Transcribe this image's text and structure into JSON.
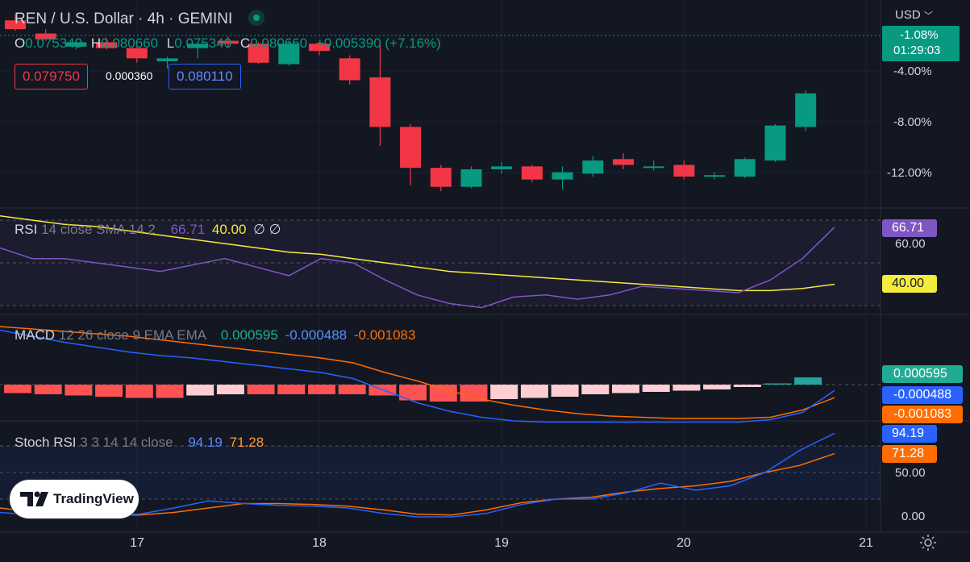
{
  "header": {
    "symbol": "REN / U.S. Dollar · 4h · GEMINI",
    "o_label": "O",
    "o_value": "0.075340",
    "h_label": "H",
    "h_value": "0.080660",
    "l_label": "L",
    "l_value": "0.075340",
    "c_label": "C",
    "c_value": "0.080660",
    "change": "+0.005390 (+7.16%)",
    "sell_price": "0.079750",
    "spread": "0.000360",
    "buy_price": "0.080110",
    "currency": "USD"
  },
  "price_axis": {
    "labels": [
      "-4.00%",
      "-8.00%",
      "-12.00%"
    ],
    "last_tag_pct": "-1.08%",
    "last_tag_time": "01:29:03"
  },
  "rsi": {
    "title": "RSI",
    "params": "14 close SMA 14 2",
    "value": "66.71",
    "sma_value": "40.00",
    "extra": "∅ ∅",
    "axis_label": "60.00",
    "color_rsi": "#7e57c2",
    "color_sma": "#f5eb3a"
  },
  "macd": {
    "title": "MACD",
    "params": "12 26 close 9 EMA EMA",
    "hist": "0.000595",
    "macd": "-0.000488",
    "signal": "-0.001083",
    "color_macd": "#2962ff",
    "color_signal": "#ff6d00"
  },
  "stoch": {
    "title": "Stoch RSI",
    "params": "3 3 14 14 close",
    "k": "94.19",
    "d": "71.28",
    "axis_labels": [
      "50.00",
      "0.00"
    ]
  },
  "x_axis": [
    "17",
    "18",
    "19",
    "20",
    "21"
  ],
  "logo_text": "TradingView",
  "colors": {
    "up": "#089981",
    "down": "#f23645",
    "bg": "#131722"
  },
  "candles": [
    {
      "o": 0.0856,
      "h": 0.086,
      "l": 0.0849,
      "c": 0.085
    },
    {
      "o": 0.0847,
      "h": 0.085,
      "l": 0.0842,
      "c": 0.0843
    },
    {
      "o": 0.0838,
      "h": 0.0843,
      "l": 0.0836,
      "c": 0.0841
    },
    {
      "o": 0.0841,
      "h": 0.0844,
      "l": 0.0836,
      "c": 0.0837
    },
    {
      "o": 0.0837,
      "h": 0.0838,
      "l": 0.0827,
      "c": 0.083
    },
    {
      "o": 0.0828,
      "h": 0.0831,
      "l": 0.0823,
      "c": 0.083
    },
    {
      "o": 0.0837,
      "h": 0.084,
      "l": 0.083,
      "c": 0.084
    },
    {
      "o": 0.0842,
      "h": 0.0845,
      "l": 0.0837,
      "c": 0.084
    },
    {
      "o": 0.084,
      "h": 0.0841,
      "l": 0.0826,
      "c": 0.0827
    },
    {
      "o": 0.0826,
      "h": 0.0842,
      "l": 0.0825,
      "c": 0.084
    },
    {
      "o": 0.084,
      "h": 0.0841,
      "l": 0.0832,
      "c": 0.0835
    },
    {
      "o": 0.083,
      "h": 0.0832,
      "l": 0.0812,
      "c": 0.0815
    },
    {
      "o": 0.0817,
      "h": 0.084,
      "l": 0.077,
      "c": 0.0783
    },
    {
      "o": 0.0783,
      "h": 0.0785,
      "l": 0.0743,
      "c": 0.0755
    },
    {
      "o": 0.0755,
      "h": 0.0757,
      "l": 0.0739,
      "c": 0.0742
    },
    {
      "o": 0.0742,
      "h": 0.0756,
      "l": 0.0741,
      "c": 0.0754
    },
    {
      "o": 0.0754,
      "h": 0.0759,
      "l": 0.0751,
      "c": 0.0756
    },
    {
      "o": 0.0756,
      "h": 0.0757,
      "l": 0.0745,
      "c": 0.0747
    },
    {
      "o": 0.0747,
      "h": 0.0756,
      "l": 0.074,
      "c": 0.0752
    },
    {
      "o": 0.0751,
      "h": 0.0763,
      "l": 0.0749,
      "c": 0.076
    },
    {
      "o": 0.0761,
      "h": 0.0765,
      "l": 0.0754,
      "c": 0.0757
    },
    {
      "o": 0.0755,
      "h": 0.076,
      "l": 0.0753,
      "c": 0.0756
    },
    {
      "o": 0.0757,
      "h": 0.076,
      "l": 0.0747,
      "c": 0.0749
    },
    {
      "o": 0.0749,
      "h": 0.0752,
      "l": 0.0747,
      "c": 0.075
    },
    {
      "o": 0.0749,
      "h": 0.0762,
      "l": 0.0748,
      "c": 0.0761
    },
    {
      "o": 0.076,
      "h": 0.0785,
      "l": 0.0759,
      "c": 0.0784
    },
    {
      "o": 0.0783,
      "h": 0.0808,
      "l": 0.078,
      "c": 0.0806
    }
  ],
  "rsi_series": {
    "rsi": [
      57,
      52,
      52,
      50,
      48,
      46,
      49,
      52,
      48,
      44,
      52,
      50,
      42,
      35,
      31,
      29,
      34,
      35,
      33,
      35,
      39,
      38,
      37,
      36,
      42,
      52,
      66.71
    ],
    "sma": [
      72,
      70,
      68,
      67,
      65,
      63,
      61,
      59,
      57,
      55,
      54,
      52,
      50,
      48,
      46,
      45,
      44,
      43,
      42,
      41,
      40,
      39,
      38,
      37,
      37,
      38,
      40
    ]
  },
  "macd_series": {
    "hist": [
      -0.0007,
      -0.0008,
      -0.0009,
      -0.001,
      -0.0011,
      -0.0011,
      -0.0009,
      -0.0008,
      -0.0008,
      -0.0008,
      -0.0008,
      -0.0008,
      -0.0009,
      -0.0013,
      -0.0014,
      -0.0014,
      -0.0012,
      -0.0011,
      -0.001,
      -0.0008,
      -0.0007,
      -0.0006,
      -0.0005,
      -0.0004,
      -0.0002,
      0.0001,
      0.000595
    ],
    "macd": [
      0.0045,
      0.004,
      0.0035,
      0.0031,
      0.0027,
      0.0024,
      0.0022,
      0.0019,
      0.0016,
      0.0013,
      0.001,
      0.0005,
      -0.0005,
      -0.0015,
      -0.0022,
      -0.0027,
      -0.003,
      -0.0031,
      -0.0031,
      -0.0031,
      -0.0031,
      -0.0031,
      -0.0031,
      -0.0031,
      -0.0029,
      -0.0023,
      -0.000488
    ],
    "signal": [
      0.0048,
      0.0046,
      0.0044,
      0.0042,
      0.004,
      0.0037,
      0.0034,
      0.0031,
      0.0028,
      0.0025,
      0.0022,
      0.0018,
      0.001,
      0.0003,
      -0.0005,
      -0.0012,
      -0.0017,
      -0.0021,
      -0.0024,
      -0.0026,
      -0.0027,
      -0.0028,
      -0.0028,
      -0.0028,
      -0.0027,
      -0.0021,
      -0.001083
    ]
  },
  "stoch_series": {
    "k": [
      5,
      2,
      2,
      2,
      3,
      10,
      18,
      15,
      13,
      12,
      10,
      4,
      0,
      0,
      4,
      14,
      20,
      20,
      27,
      38,
      30,
      35,
      50,
      75,
      94.19
    ],
    "d": [
      10,
      5,
      2,
      2,
      2,
      5,
      10,
      15,
      15,
      14,
      12,
      8,
      3,
      2,
      8,
      16,
      20,
      22,
      28,
      32,
      35,
      40,
      50,
      58,
      71.28
    ]
  }
}
